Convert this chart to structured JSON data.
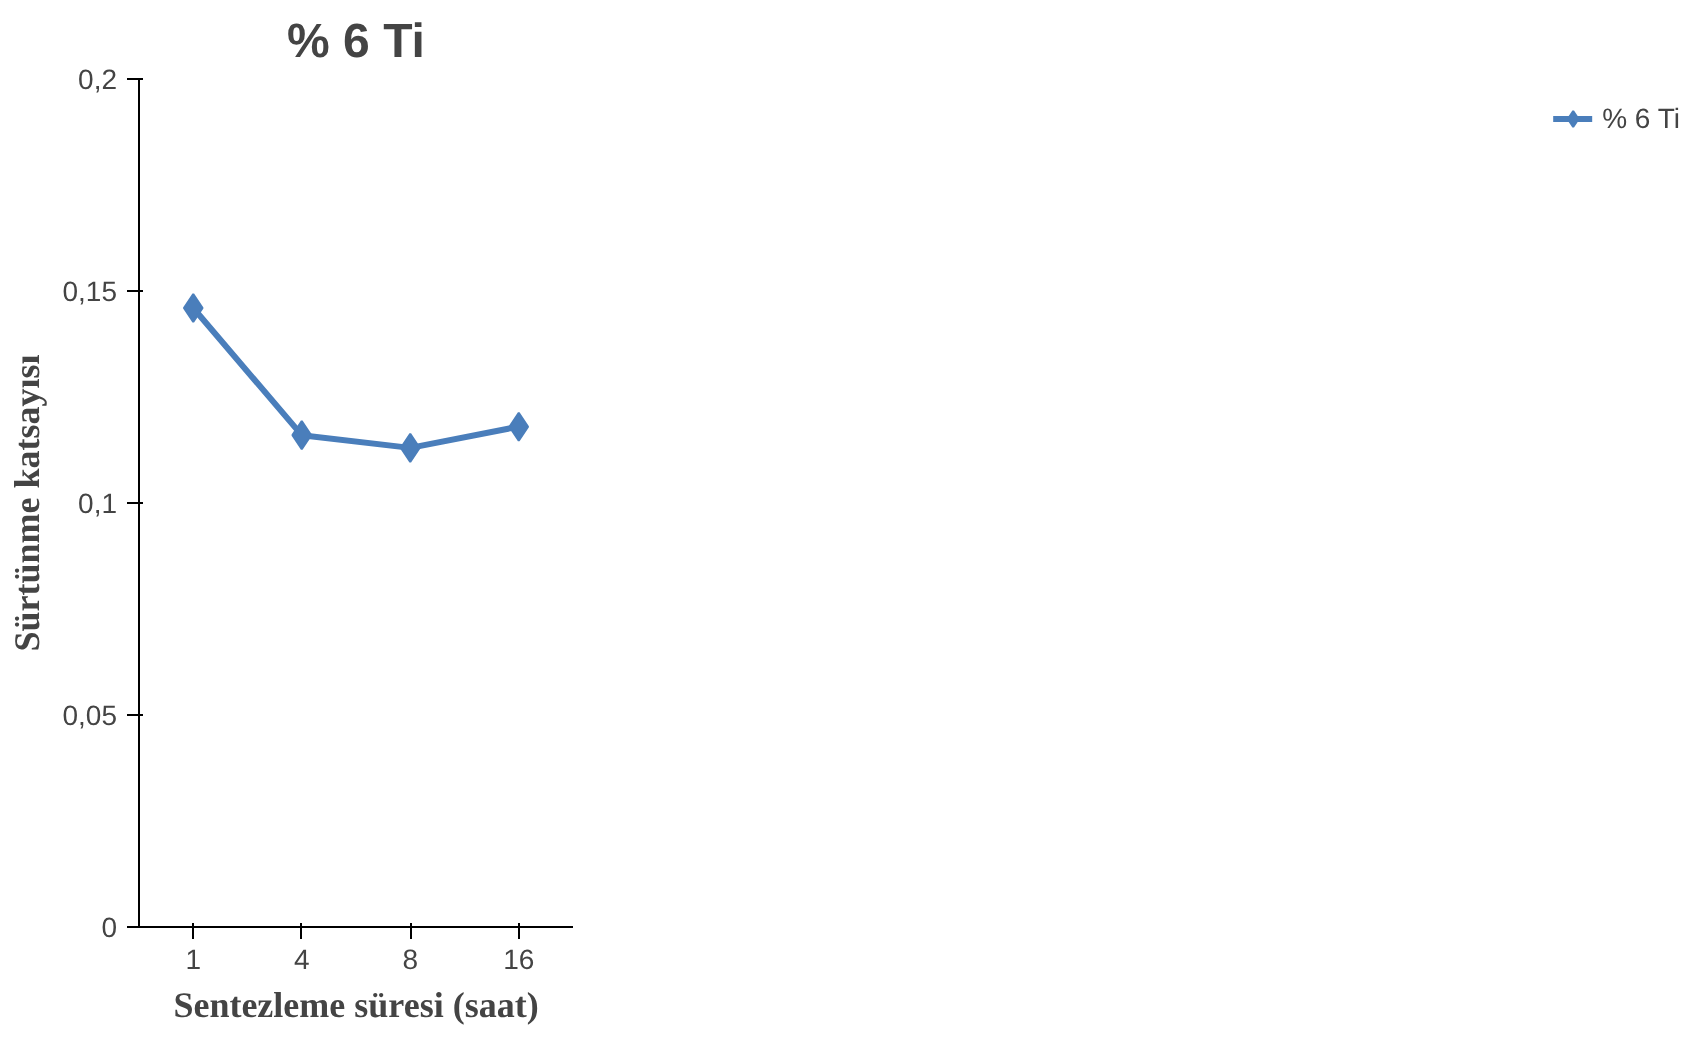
{
  "chart_data": {
    "type": "line",
    "title": "% 6 Ti",
    "xlabel": "Sentezleme süresi (saat)",
    "ylabel": "Sürtünme katsayısı",
    "categories": [
      "1",
      "4",
      "8",
      "16"
    ],
    "series": [
      {
        "name": "% 6 Ti",
        "color": "#4a7ebb",
        "values": [
          0.146,
          0.116,
          0.113,
          0.118
        ]
      }
    ],
    "ylim": [
      0,
      0.2
    ],
    "yticks": [
      {
        "value": 0,
        "label": "0"
      },
      {
        "value": 0.05,
        "label": "0,05"
      },
      {
        "value": 0.1,
        "label": "0,1"
      },
      {
        "value": 0.15,
        "label": "0,15"
      },
      {
        "value": 0.2,
        "label": "0,2"
      }
    ],
    "grid": false,
    "legend": "right",
    "marker": "diamond",
    "line_style": "solid"
  }
}
